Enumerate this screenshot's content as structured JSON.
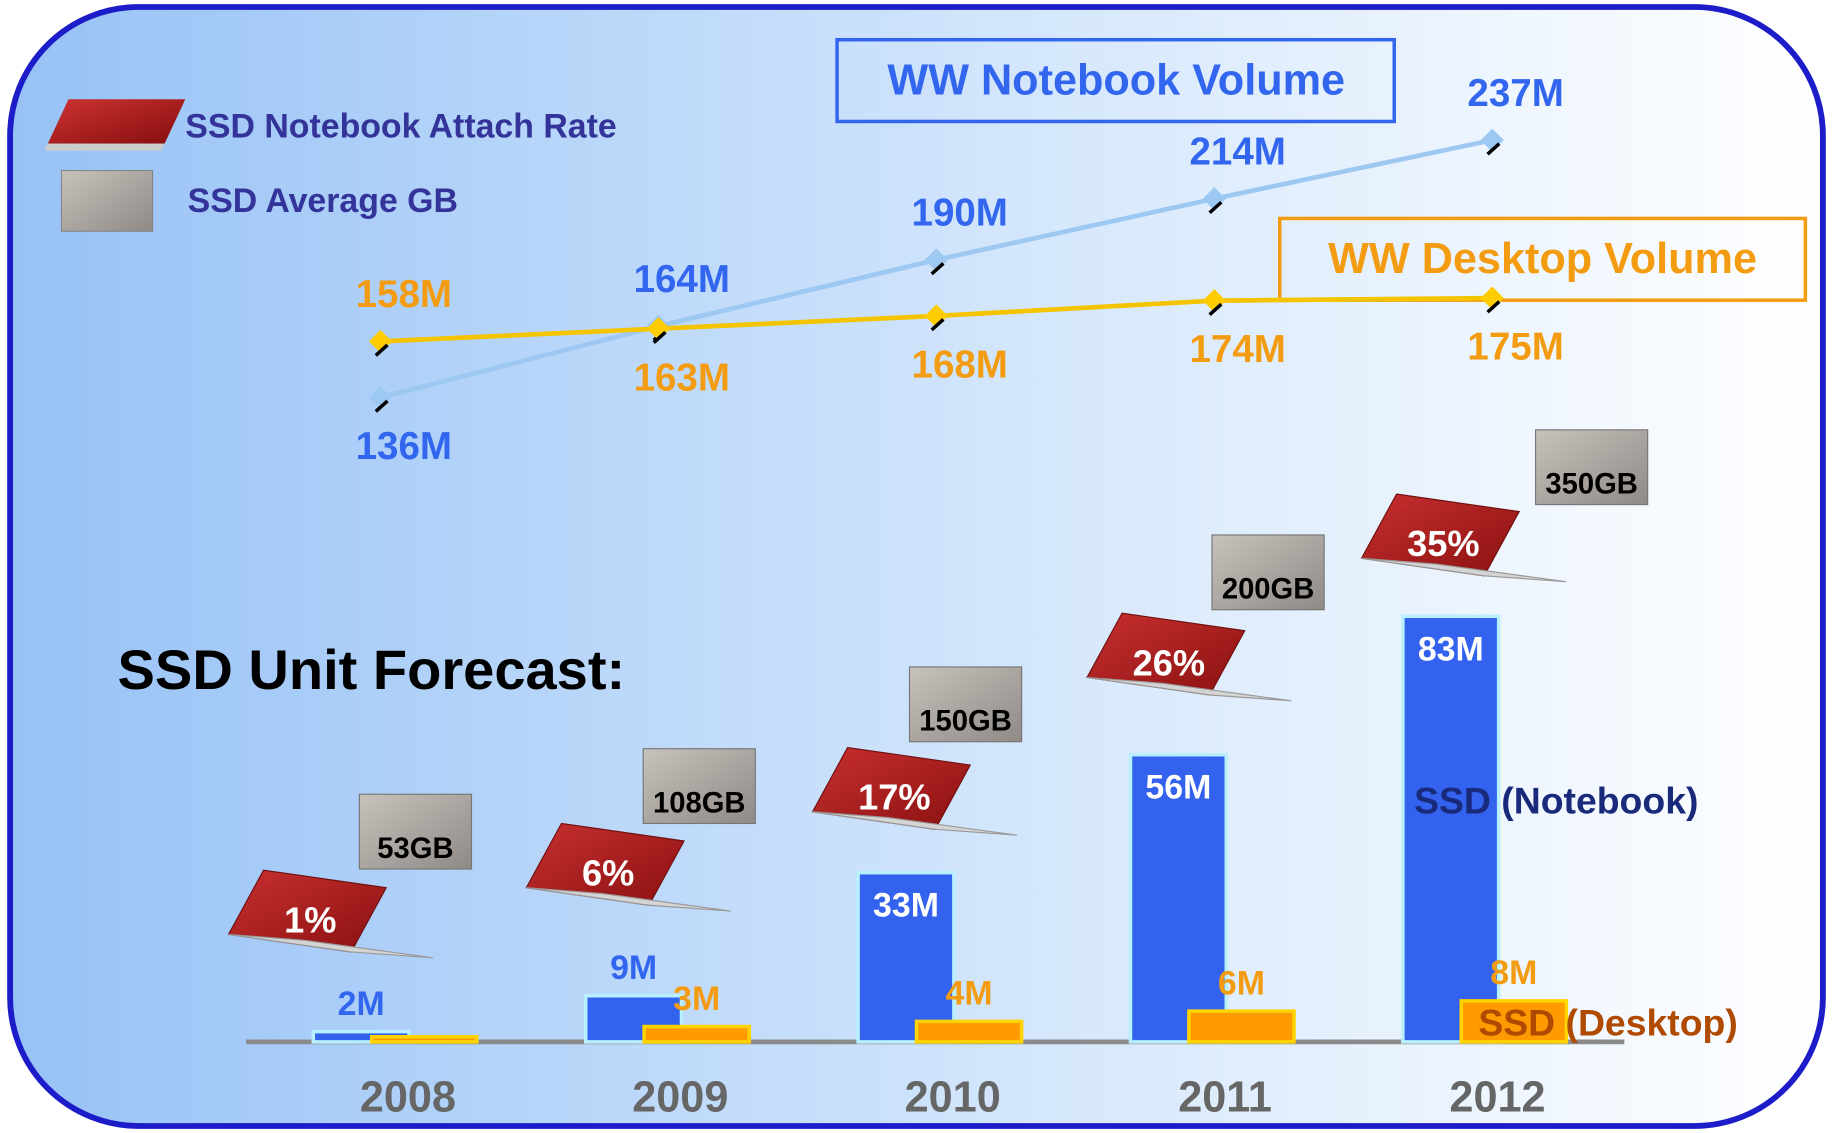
{
  "chart_data": [
    {
      "type": "line",
      "x": [
        2008,
        2009,
        2010,
        2011,
        2012
      ],
      "xlim": [
        2007.55,
        2012.45
      ],
      "ylim": [
        110,
        270
      ],
      "series": [
        {
          "name": "WW Notebook Volume",
          "color": "#9cc8f2",
          "label_color": "#3366ee",
          "values": [
            136,
            164,
            190,
            214,
            237
          ],
          "value_labels": [
            "136M",
            "164M",
            "190M",
            "214M",
            "237M"
          ]
        },
        {
          "name": "WW Desktop Volume",
          "color": "#f5c400",
          "label_color": "#f39c12",
          "values": [
            158,
            163,
            168,
            174,
            175
          ],
          "value_labels": [
            "158M",
            "163M",
            "168M",
            "174M",
            "175M"
          ]
        }
      ]
    },
    {
      "type": "bar",
      "title": "SSD Unit Forecast:",
      "categories": [
        "2008",
        "2009",
        "2010",
        "2011",
        "2012"
      ],
      "ylim": [
        0,
        100
      ],
      "series": [
        {
          "name": "SSD (Notebook)",
          "color": "#3262ee",
          "values": [
            2,
            9,
            33,
            56,
            83
          ],
          "value_labels": [
            "2M",
            "9M",
            "33M",
            "56M",
            "83M"
          ]
        },
        {
          "name": "SSD (Desktop)",
          "color": "#ff9a00",
          "values": [
            1,
            3,
            4,
            6,
            8
          ],
          "value_labels": [
            null,
            "3M",
            "4M",
            "6M",
            "8M"
          ]
        }
      ],
      "attach_rate": {
        "name": "SSD Notebook Attach Rate",
        "values": [
          1,
          6,
          17,
          26,
          35
        ],
        "value_labels": [
          "1%",
          "6%",
          "17%",
          "26%",
          "35%"
        ]
      },
      "average_gb": {
        "name": "SSD Average GB",
        "values": [
          53,
          108,
          150,
          200,
          350
        ],
        "value_labels": [
          "53GB",
          "108GB",
          "150GB",
          "200GB",
          "350GB"
        ]
      }
    }
  ]
}
